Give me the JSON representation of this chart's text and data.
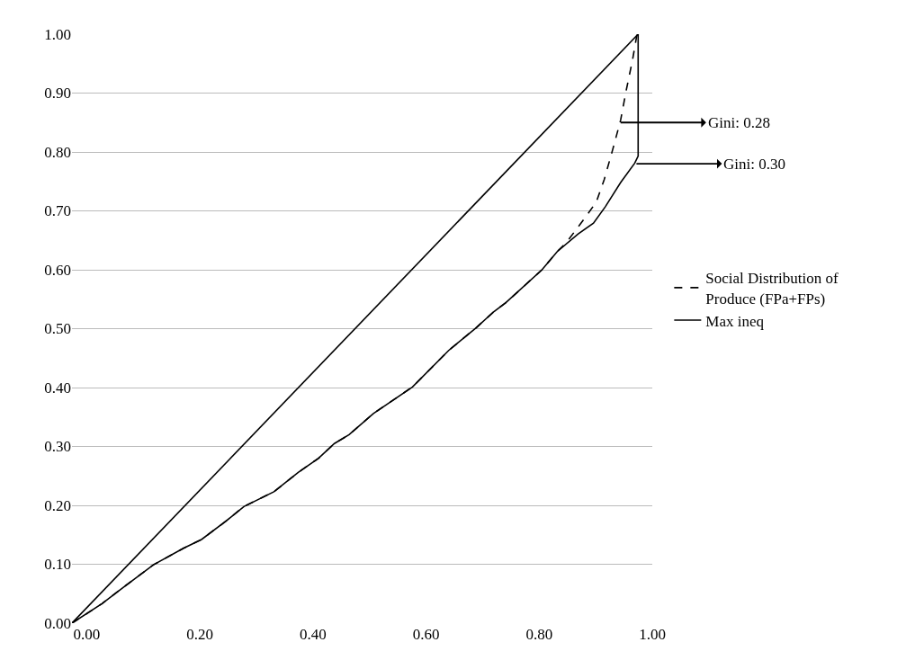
{
  "chart_data": {
    "type": "line",
    "xlim": [
      -0.026,
      1.0
    ],
    "xticks": [
      {
        "value": 0,
        "label": "0.00"
      },
      {
        "value": 0.2,
        "label": "0.20"
      },
      {
        "value": 0.4,
        "label": "0.40"
      },
      {
        "value": 0.6,
        "label": "0.60"
      },
      {
        "value": 0.8,
        "label": "0.80"
      },
      {
        "value": 1.0,
        "label": "1.00"
      }
    ],
    "ylim": [
      0,
      1.0
    ],
    "yticks": [
      {
        "value": 0,
        "label": "0.00"
      },
      {
        "value": 0.1,
        "label": "0.10"
      },
      {
        "value": 0.2,
        "label": "0.20"
      },
      {
        "value": 0.3,
        "label": "0.30"
      },
      {
        "value": 0.4,
        "label": "0.40"
      },
      {
        "value": 0.5,
        "label": "0.50"
      },
      {
        "value": 0.6,
        "label": "0.60"
      },
      {
        "value": 0.7,
        "label": "0.70"
      },
      {
        "value": 0.8,
        "label": "0.80"
      },
      {
        "value": 0.9,
        "label": "0.90"
      },
      {
        "value": 1.0,
        "label": "1.00"
      }
    ],
    "grid": "y",
    "legend": "right",
    "series": [
      {
        "color": "#000000",
        "line_style": "solid",
        "x": [
          -0.026,
          0.975
        ],
        "values": [
          0,
          1.0
        ]
      },
      {
        "name": "Social Distribution of Produce (FPa+FPs)",
        "color": "#000000",
        "line_style": "dashed",
        "x": [
          -0.026,
          0.027,
          0.065,
          0.118,
          0.171,
          0.203,
          0.246,
          0.278,
          0.331,
          0.374,
          0.41,
          0.438,
          0.464,
          0.507,
          0.576,
          0.64,
          0.688,
          0.72,
          0.741,
          0.805,
          0.832,
          0.848,
          0.88,
          0.901,
          0.915,
          0.93,
          0.944,
          0.954,
          0.965,
          0.973
        ],
        "values": [
          0,
          0.033,
          0.061,
          0.099,
          0.127,
          0.142,
          0.173,
          0.198,
          0.223,
          0.256,
          0.28,
          0.305,
          0.32,
          0.356,
          0.401,
          0.463,
          0.501,
          0.529,
          0.544,
          0.6,
          0.631,
          0.646,
          0.687,
          0.715,
          0.753,
          0.804,
          0.854,
          0.905,
          0.956,
          1.0
        ]
      },
      {
        "name": "Max ineq",
        "color": "#000000",
        "line_style": "solid",
        "x": [
          -0.026,
          0.027,
          0.065,
          0.118,
          0.171,
          0.203,
          0.246,
          0.278,
          0.331,
          0.374,
          0.41,
          0.438,
          0.464,
          0.507,
          0.576,
          0.64,
          0.688,
          0.72,
          0.741,
          0.805,
          0.832,
          0.869,
          0.896,
          0.917,
          0.944,
          0.969,
          0.975,
          0.975
        ],
        "values": [
          0,
          0.033,
          0.061,
          0.099,
          0.127,
          0.142,
          0.173,
          0.198,
          0.223,
          0.256,
          0.28,
          0.305,
          0.32,
          0.356,
          0.401,
          0.463,
          0.501,
          0.529,
          0.544,
          0.6,
          0.631,
          0.661,
          0.679,
          0.707,
          0.748,
          0.781,
          0.793,
          1.0
        ]
      }
    ],
    "annotations": [
      {
        "text": "Gini: 0.28",
        "x": 0.944,
        "y": 0.85
      },
      {
        "text": "Gini: 0.30",
        "x": 0.972,
        "y": 0.78
      }
    ]
  }
}
